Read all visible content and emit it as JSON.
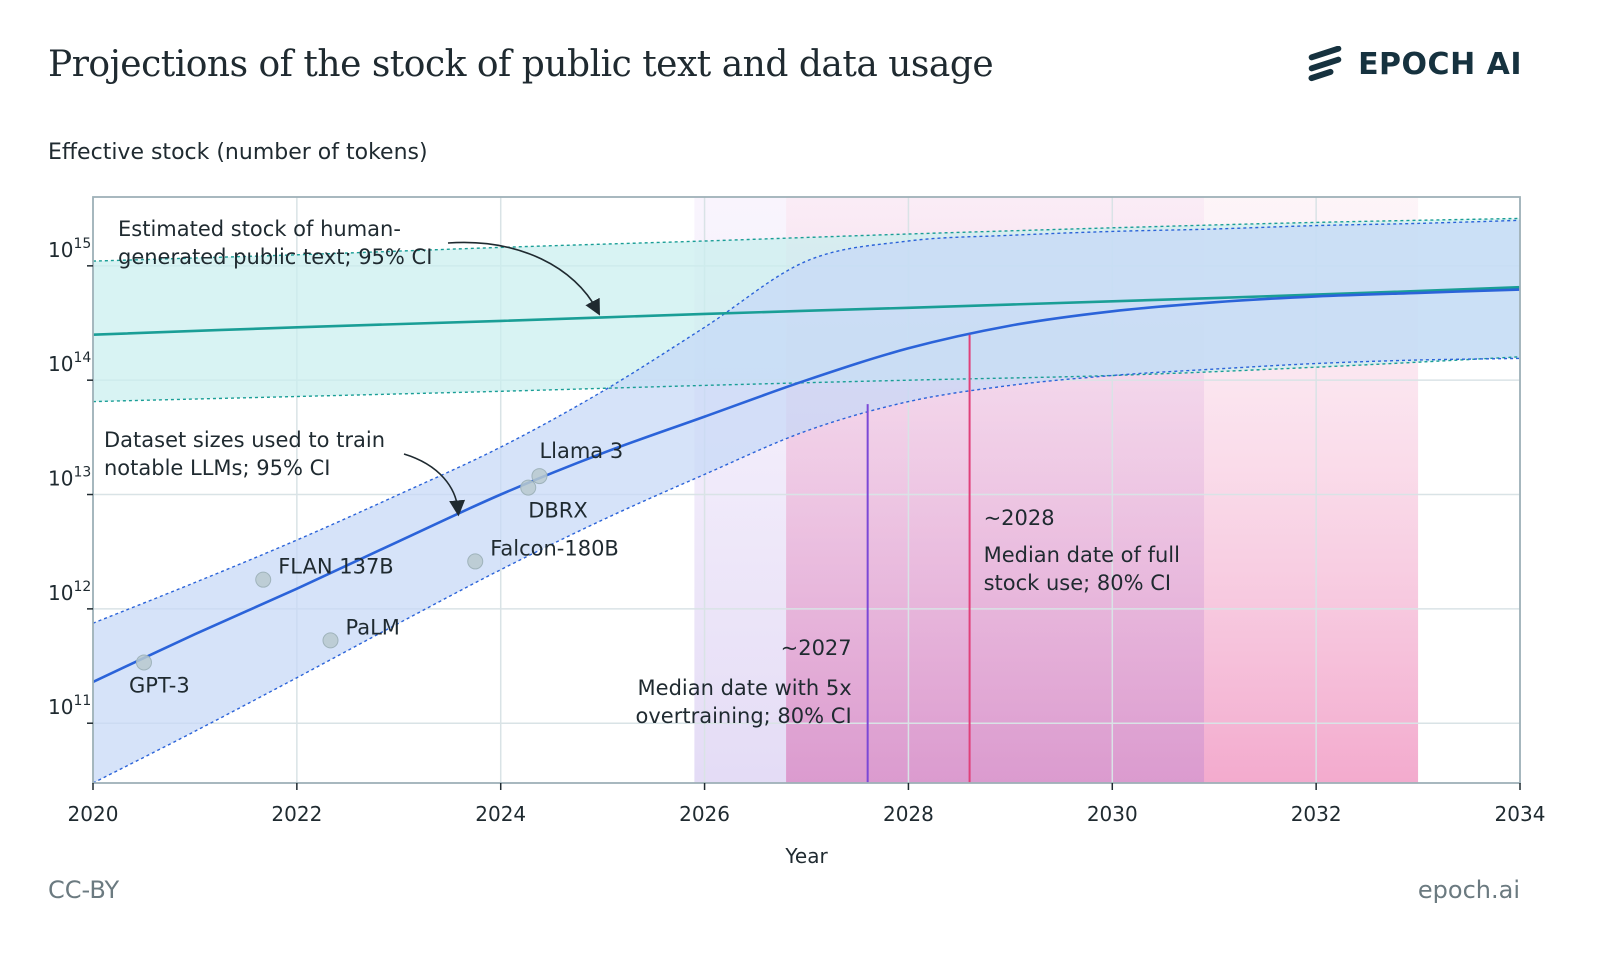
{
  "header": {
    "title": "Projections of the stock of public text and data usage",
    "brand": "EPOCH AI"
  },
  "footer": {
    "license": "CC-BY",
    "site": "epoch.ai"
  },
  "chart_data": {
    "type": "line",
    "xlabel": "Year",
    "ylabel": "Effective stock (number of tokens)",
    "yscale": "log",
    "xlim": [
      2020,
      2034
    ],
    "ylim": [
      30000000000.0,
      4000000000000000.0
    ],
    "x_ticks": [
      "2020",
      "2022",
      "2024",
      "2026",
      "2028",
      "2030",
      "2032",
      "2034"
    ],
    "y_ticks": [
      {
        "base": "10",
        "exp": "11",
        "value": 100000000000.0
      },
      {
        "base": "10",
        "exp": "12",
        "value": 1000000000000.0
      },
      {
        "base": "10",
        "exp": "13",
        "value": 10000000000000.0
      },
      {
        "base": "10",
        "exp": "14",
        "value": 100000000000000.0
      },
      {
        "base": "10",
        "exp": "15",
        "value": 1000000000000000.0
      }
    ],
    "grid": true,
    "colors": {
      "stock": "#1a9e96",
      "stock_band": "#c9eeee",
      "usage": "#2b63d9",
      "usage_band": "#c6d8f7",
      "overtraining": "#7b48d6",
      "full_use": "#e0407a",
      "models": "#b9c9cf"
    },
    "series": [
      {
        "name": "Estimated stock of human-generated public text",
        "x": [
          2020,
          2022,
          2024,
          2026,
          2028,
          2030,
          2032,
          2034
        ],
        "median": [
          250000000000000.0,
          290000000000000.0,
          330000000000000.0,
          380000000000000.0,
          430000000000000.0,
          490000000000000.0,
          560000000000000.0,
          650000000000000.0
        ],
        "lower": [
          65000000000000.0,
          72000000000000.0,
          80000000000000.0,
          90000000000000.0,
          100000000000000.0,
          110000000000000.0,
          130000000000000.0,
          160000000000000.0
        ],
        "upper": [
          1100000000000000.0,
          1250000000000000.0,
          1450000000000000.0,
          1650000000000000.0,
          1900000000000000.0,
          2150000000000000.0,
          2400000000000000.0,
          2600000000000000.0
        ]
      },
      {
        "name": "Dataset sizes used to train notable LLMs",
        "x": [
          2020,
          2021,
          2022,
          2023,
          2024,
          2025,
          2026,
          2027,
          2028,
          2029,
          2030,
          2031,
          2032,
          2033,
          2034
        ],
        "median": [
          230000000000.0,
          600000000000.0,
          1500000000000.0,
          3900000000000.0,
          10000000000000.0,
          23000000000000.0,
          48000000000000.0,
          100000000000000.0,
          190000000000000.0,
          300000000000000.0,
          400000000000000.0,
          480000000000000.0,
          540000000000000.0,
          580000000000000.0,
          620000000000000.0
        ],
        "lower": [
          30000000000.0,
          85000000000.0,
          250000000000.0,
          750000000000.0,
          2200000000000.0,
          6000000000000.0,
          15000000000000.0,
          36000000000000.0,
          65000000000000.0,
          90000000000000.0,
          110000000000000.0,
          125000000000000.0,
          140000000000000.0,
          150000000000000.0,
          155000000000000.0
        ],
        "upper": [
          750000000000.0,
          1700000000000.0,
          4000000000000.0,
          10000000000000.0,
          26000000000000.0,
          80000000000000.0,
          290000000000000.0,
          1100000000000000.0,
          1650000000000000.0,
          1850000000000000.0,
          2000000000000000.0,
          2100000000000000.0,
          2250000000000000.0,
          2350000000000000.0,
          2500000000000000.0
        ]
      }
    ],
    "models": [
      {
        "name": "GPT-3",
        "x": 2020.5,
        "y": 340000000000.0
      },
      {
        "name": "FLAN 137B",
        "x": 2021.67,
        "y": 1800000000000.0
      },
      {
        "name": "PaLM",
        "x": 2022.33,
        "y": 530000000000.0
      },
      {
        "name": "Falcon-180B",
        "x": 2023.75,
        "y": 2600000000000.0
      },
      {
        "name": "DBRX",
        "x": 2024.27,
        "y": 11500000000000.0
      },
      {
        "name": "Llama 3",
        "x": 2024.38,
        "y": 14500000000000.0
      }
    ],
    "vertical_markers": [
      {
        "label": "~2027",
        "x": 2027.6,
        "ci": [
          2025.9,
          2030.9
        ],
        "core": [
          2026.8,
          2030.9
        ],
        "text": "Median date with 5x overtraining; 80% CI",
        "lines": [
          "Median date with 5x",
          "overtraining; 80% CI"
        ]
      },
      {
        "label": "~2028",
        "x": 2028.6,
        "ci": [
          2026.8,
          2033.0
        ],
        "text": "Median date of full stock use; 80% CI",
        "lines": [
          "Median date of full",
          "stock use; 80% CI"
        ]
      }
    ],
    "annotations": {
      "stock_lines": [
        "Estimated stock of human-",
        "generated public text; 95% CI"
      ],
      "usage_lines": [
        "Dataset sizes used to train",
        "notable LLMs; 95% CI"
      ]
    }
  }
}
